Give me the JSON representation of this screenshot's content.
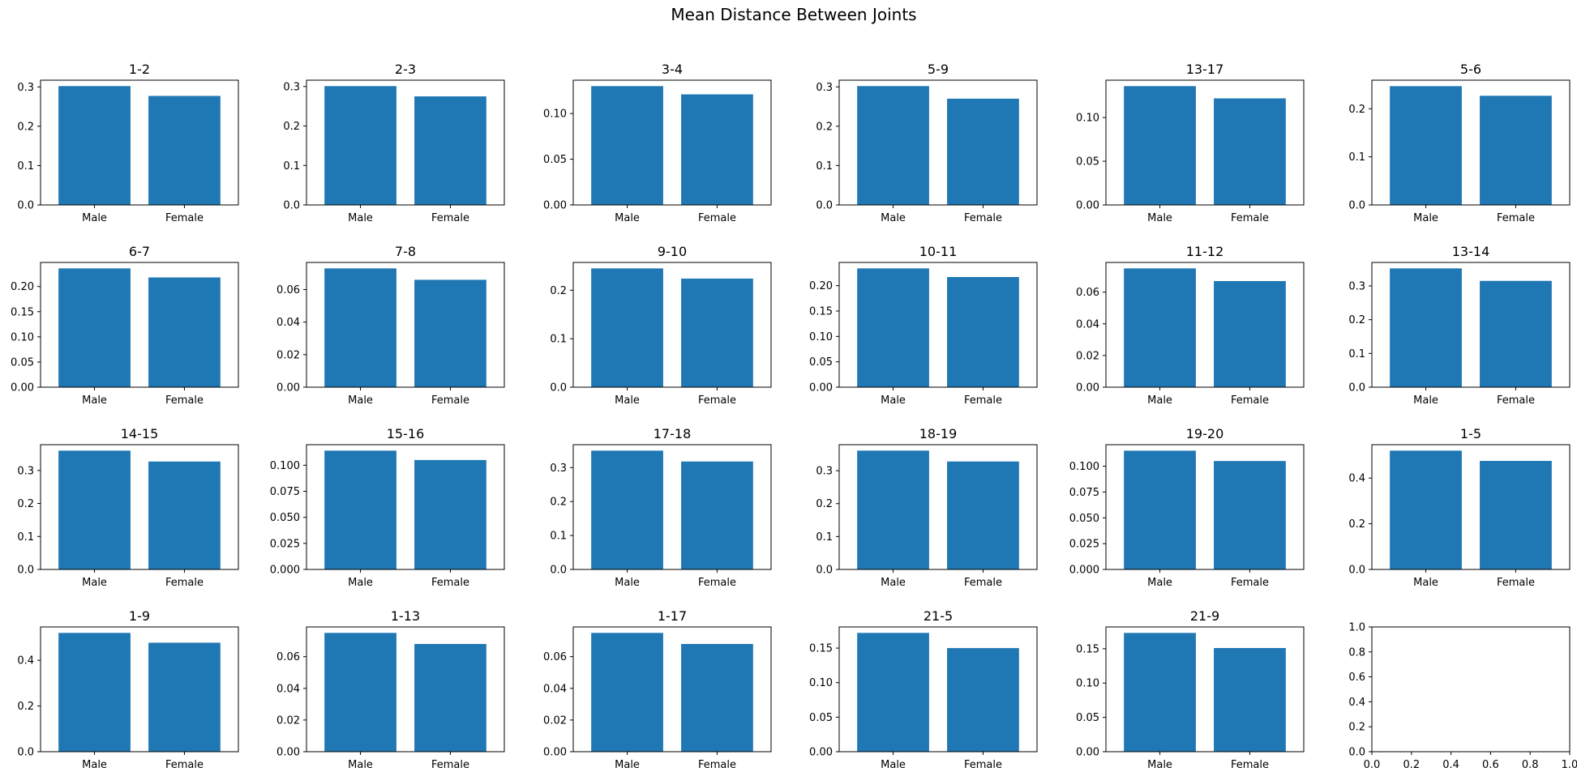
{
  "figure": {
    "title": "Mean Distance Between Joints",
    "bar_color": "#1f77b4"
  },
  "chart_data": [
    {
      "type": "bar",
      "title": "1-2",
      "categories": [
        "Male",
        "Female"
      ],
      "values": [
        0.302,
        0.277
      ],
      "ylim": [
        0,
        0.317
      ],
      "yticks": [
        "0.0",
        "0.1",
        "0.2",
        "0.3"
      ]
    },
    {
      "type": "bar",
      "title": "2-3",
      "categories": [
        "Male",
        "Female"
      ],
      "values": [
        0.301,
        0.275
      ],
      "ylim": [
        0,
        0.316
      ],
      "yticks": [
        "0.0",
        "0.1",
        "0.2",
        "0.3"
      ]
    },
    {
      "type": "bar",
      "title": "3-4",
      "categories": [
        "Male",
        "Female"
      ],
      "values": [
        0.13,
        0.121
      ],
      "ylim": [
        0,
        0.1365
      ],
      "yticks": [
        "0.00",
        "0.05",
        "0.10"
      ]
    },
    {
      "type": "bar",
      "title": "5-9",
      "categories": [
        "Male",
        "Female"
      ],
      "values": [
        0.302,
        0.27
      ],
      "ylim": [
        0,
        0.317
      ],
      "yticks": [
        "0.0",
        "0.1",
        "0.2",
        "0.3"
      ]
    },
    {
      "type": "bar",
      "title": "13-17",
      "categories": [
        "Male",
        "Female"
      ],
      "values": [
        0.136,
        0.122
      ],
      "ylim": [
        0,
        0.1428
      ],
      "yticks": [
        "0.00",
        "0.05",
        "0.10"
      ]
    },
    {
      "type": "bar",
      "title": "5-6",
      "categories": [
        "Male",
        "Female"
      ],
      "values": [
        0.247,
        0.227
      ],
      "ylim": [
        0,
        0.2594
      ],
      "yticks": [
        "0.0",
        "0.1",
        "0.2"
      ]
    },
    {
      "type": "bar",
      "title": "6-7",
      "categories": [
        "Male",
        "Female"
      ],
      "values": [
        0.236,
        0.218
      ],
      "ylim": [
        0,
        0.2478
      ],
      "yticks": [
        "0.00",
        "0.05",
        "0.10",
        "0.15",
        "0.20"
      ]
    },
    {
      "type": "bar",
      "title": "7-8",
      "categories": [
        "Male",
        "Female"
      ],
      "values": [
        0.073,
        0.066
      ],
      "ylim": [
        0,
        0.07665
      ],
      "yticks": [
        "0.00",
        "0.02",
        "0.04",
        "0.06"
      ]
    },
    {
      "type": "bar",
      "title": "9-10",
      "categories": [
        "Male",
        "Female"
      ],
      "values": [
        0.245,
        0.224
      ],
      "ylim": [
        0,
        0.2573
      ],
      "yticks": [
        "0.0",
        "0.1",
        "0.2"
      ]
    },
    {
      "type": "bar",
      "title": "10-11",
      "categories": [
        "Male",
        "Female"
      ],
      "values": [
        0.234,
        0.217
      ],
      "ylim": [
        0,
        0.2457
      ],
      "yticks": [
        "0.00",
        "0.05",
        "0.10",
        "0.15",
        "0.20"
      ]
    },
    {
      "type": "bar",
      "title": "11-12",
      "categories": [
        "Male",
        "Female"
      ],
      "values": [
        0.075,
        0.067
      ],
      "ylim": [
        0,
        0.07875
      ],
      "yticks": [
        "0.00",
        "0.02",
        "0.04",
        "0.06"
      ]
    },
    {
      "type": "bar",
      "title": "13-14",
      "categories": [
        "Male",
        "Female"
      ],
      "values": [
        0.352,
        0.315
      ],
      "ylim": [
        0,
        0.3696
      ],
      "yticks": [
        "0.0",
        "0.1",
        "0.2",
        "0.3"
      ]
    },
    {
      "type": "bar",
      "title": "14-15",
      "categories": [
        "Male",
        "Female"
      ],
      "values": [
        0.36,
        0.327
      ],
      "ylim": [
        0,
        0.378
      ],
      "yticks": [
        "0.0",
        "0.1",
        "0.2",
        "0.3"
      ]
    },
    {
      "type": "bar",
      "title": "15-16",
      "categories": [
        "Male",
        "Female"
      ],
      "values": [
        0.114,
        0.105
      ],
      "ylim": [
        0,
        0.1197
      ],
      "yticks": [
        "0.000",
        "0.025",
        "0.050",
        "0.075",
        "0.100"
      ]
    },
    {
      "type": "bar",
      "title": "17-18",
      "categories": [
        "Male",
        "Female"
      ],
      "values": [
        0.35,
        0.318
      ],
      "ylim": [
        0,
        0.3675
      ],
      "yticks": [
        "0.0",
        "0.1",
        "0.2",
        "0.3"
      ]
    },
    {
      "type": "bar",
      "title": "18-19",
      "categories": [
        "Male",
        "Female"
      ],
      "values": [
        0.361,
        0.328
      ],
      "ylim": [
        0,
        0.379
      ],
      "yticks": [
        "0.0",
        "0.1",
        "0.2",
        "0.3"
      ]
    },
    {
      "type": "bar",
      "title": "19-20",
      "categories": [
        "Male",
        "Female"
      ],
      "values": [
        0.115,
        0.105
      ],
      "ylim": [
        0,
        0.1208
      ],
      "yticks": [
        "0.000",
        "0.025",
        "0.050",
        "0.075",
        "0.100"
      ]
    },
    {
      "type": "bar",
      "title": "1-5",
      "categories": [
        "Male",
        "Female"
      ],
      "values": [
        0.52,
        0.475
      ],
      "ylim": [
        0,
        0.546
      ],
      "yticks": [
        "0.0",
        "0.2",
        "0.4"
      ]
    },
    {
      "type": "bar",
      "title": "1-9",
      "categories": [
        "Male",
        "Female"
      ],
      "values": [
        0.52,
        0.477
      ],
      "ylim": [
        0,
        0.546
      ],
      "yticks": [
        "0.0",
        "0.2",
        "0.4"
      ]
    },
    {
      "type": "bar",
      "title": "1-13",
      "categories": [
        "Male",
        "Female"
      ],
      "values": [
        0.075,
        0.068
      ],
      "ylim": [
        0,
        0.07875
      ],
      "yticks": [
        "0.00",
        "0.02",
        "0.04",
        "0.06"
      ]
    },
    {
      "type": "bar",
      "title": "1-17",
      "categories": [
        "Male",
        "Female"
      ],
      "values": [
        0.075,
        0.068
      ],
      "ylim": [
        0,
        0.07875
      ],
      "yticks": [
        "0.00",
        "0.02",
        "0.04",
        "0.06"
      ]
    },
    {
      "type": "bar",
      "title": "21-5",
      "categories": [
        "Male",
        "Female"
      ],
      "values": [
        0.172,
        0.15
      ],
      "ylim": [
        0,
        0.1806
      ],
      "yticks": [
        "0.00",
        "0.05",
        "0.10",
        "0.15"
      ]
    },
    {
      "type": "bar",
      "title": "21-9",
      "categories": [
        "Male",
        "Female"
      ],
      "values": [
        0.173,
        0.151
      ],
      "ylim": [
        0,
        0.1817
      ],
      "yticks": [
        "0.00",
        "0.05",
        "0.10",
        "0.15"
      ]
    },
    {
      "type": "empty",
      "title": "",
      "categories": [],
      "values": [],
      "xlim": [
        0,
        1
      ],
      "ylim": [
        0,
        1
      ],
      "xticks": [
        "0.0",
        "0.2",
        "0.4",
        "0.6",
        "0.8",
        "1.0"
      ],
      "yticks": [
        "0.0",
        "0.2",
        "0.4",
        "0.6",
        "0.8",
        "1.0"
      ]
    }
  ]
}
